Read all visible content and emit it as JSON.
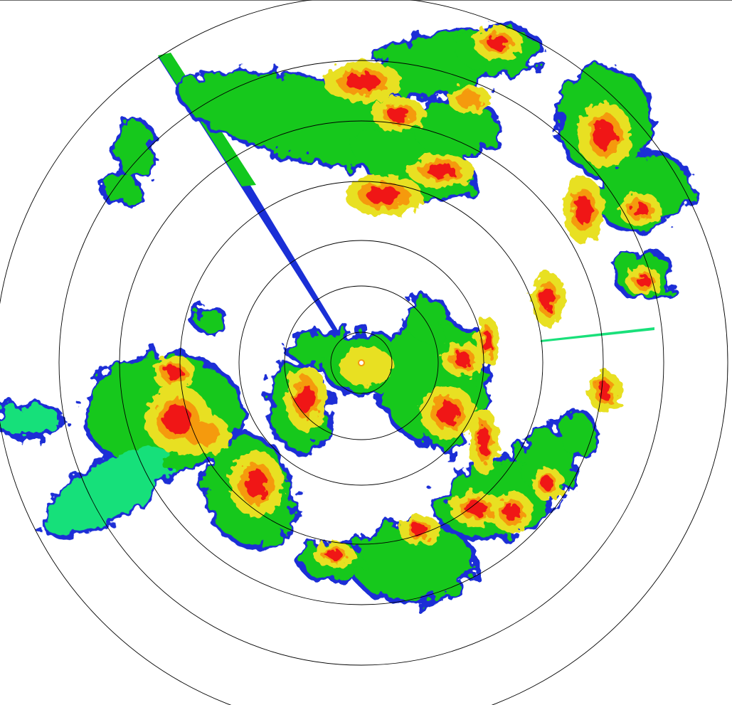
{
  "display": {
    "type": "radar-ppi",
    "range_rings": 7,
    "ring_color": "#000000",
    "background": "#ffffff"
  },
  "reflectivity_palette": {
    "weak": "#1a2fd6",
    "light": "#19e07a",
    "moderate": "#12c81e",
    "heavy": "#e8e020",
    "intense": "#f59a10",
    "extreme": "#f01818"
  }
}
